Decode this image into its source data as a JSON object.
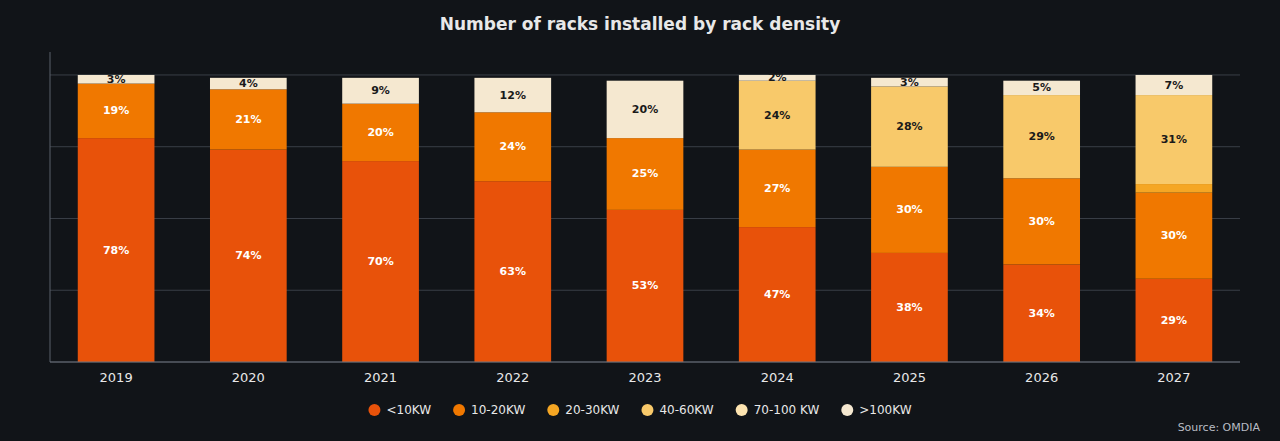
{
  "chart_data": {
    "type": "bar",
    "stacked": true,
    "title": "Number of racks installed by rack density",
    "categories": [
      "2019",
      "2020",
      "2021",
      "2022",
      "2023",
      "2024",
      "2025",
      "2026",
      "2027"
    ],
    "series": [
      {
        "name": "<10KW",
        "color": "#e8520a",
        "values": [
          78,
          74,
          70,
          63,
          53,
          47,
          38,
          34,
          29
        ],
        "value_labels": [
          "78%",
          "74%",
          "70%",
          "63%",
          "53%",
          "47%",
          "38%",
          "34%",
          "29%"
        ]
      },
      {
        "name": "10-20KW",
        "color": "#f07800",
        "values": [
          19,
          21,
          20,
          24,
          25,
          27,
          30,
          30,
          30
        ],
        "value_labels": [
          "19%",
          "21%",
          "20%",
          "24%",
          "25%",
          "27%",
          "30%",
          "30%",
          "30%"
        ]
      },
      {
        "name": "20-30KW",
        "color": "#f5a623",
        "values": [
          0,
          0,
          0,
          0,
          0,
          0,
          0,
          0,
          3
        ],
        "value_labels": [
          null,
          null,
          null,
          null,
          null,
          null,
          null,
          null,
          null
        ]
      },
      {
        "name": "40-60KW",
        "color": "#f8c96a",
        "values": [
          0,
          0,
          0,
          0,
          0,
          24,
          28,
          29,
          31
        ],
        "value_labels": [
          null,
          null,
          null,
          null,
          null,
          "24%",
          "28%",
          "29%",
          "31%"
        ]
      },
      {
        "name": "70-100 KW",
        "color": "#fde4b0",
        "values": [
          0,
          0,
          0,
          0,
          0,
          0,
          0,
          0,
          0
        ],
        "value_labels": [
          null,
          null,
          null,
          null,
          null,
          null,
          null,
          null,
          null
        ]
      },
      {
        "name": ">100KW",
        "color": "#f5e8d0",
        "values": [
          3,
          4,
          9,
          12,
          20,
          2,
          3,
          5,
          7
        ],
        "value_labels": [
          "3%",
          "4%",
          "9%",
          "12%",
          "20%",
          "2%",
          "3%",
          "5%",
          "7%"
        ]
      }
    ],
    "ylim": [
      0,
      108
    ],
    "yticks": [
      0,
      25,
      50,
      75,
      100
    ],
    "grid": true,
    "tick_labels": "x",
    "data_labels": true,
    "legend": "bottom",
    "annotations": [
      "Source: OMDIA"
    ]
  }
}
